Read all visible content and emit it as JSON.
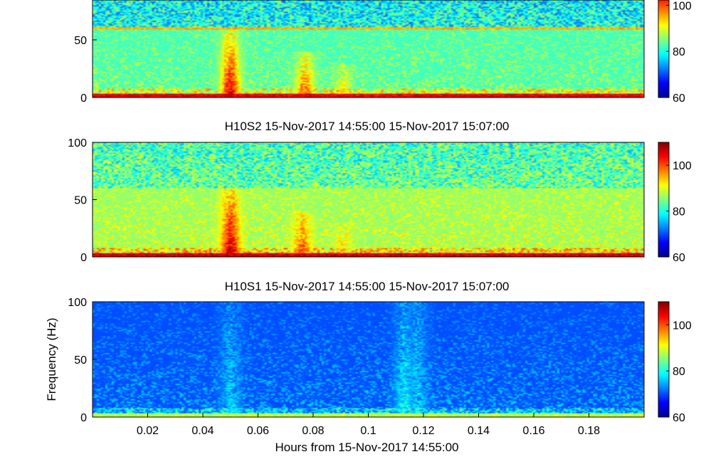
{
  "chart_data": [
    {
      "type": "heatmap",
      "title": "",
      "ylabel": "",
      "xlim": [
        0,
        0.2
      ],
      "ylim": [
        0,
        100
      ],
      "yticks": [
        "0",
        "50"
      ],
      "xticks": [],
      "clim": [
        60,
        110
      ],
      "colorbar_ticks": [
        "100",
        "80",
        "60"
      ],
      "background_level": 82,
      "floor_level": 105,
      "hum_line_hz": 60,
      "events": [
        {
          "t": 0.05,
          "fmax": 60,
          "level": 106
        },
        {
          "t": 0.077,
          "fmax": 40,
          "level": 100
        },
        {
          "t": 0.091,
          "fmax": 30,
          "level": 92
        }
      ]
    },
    {
      "type": "heatmap",
      "title": "H10S2 15-Nov-2017 14:55:00 15-Nov-2017 15:07:00",
      "ylabel": "",
      "xlim": [
        0,
        0.2
      ],
      "ylim": [
        0,
        100
      ],
      "yticks": [
        "100",
        "50",
        "0"
      ],
      "xticks": [],
      "clim": [
        60,
        110
      ],
      "colorbar_ticks": [
        "100",
        "80",
        "60"
      ],
      "background_level": 86,
      "floor_level": 106,
      "hum_line_hz": null,
      "events": [
        {
          "t": 0.05,
          "fmax": 60,
          "level": 107
        },
        {
          "t": 0.076,
          "fmax": 40,
          "level": 100
        },
        {
          "t": 0.091,
          "fmax": 30,
          "level": 93
        }
      ]
    },
    {
      "type": "heatmap",
      "title": "H10S1 15-Nov-2017 14:55:00 15-Nov-2017 15:07:00",
      "ylabel": "Frequency (Hz)",
      "xlabel": "Hours from 15-Nov-2017 14:55:00",
      "xlim": [
        0,
        0.2
      ],
      "ylim": [
        0,
        100
      ],
      "yticks": [
        "100",
        "50",
        "0"
      ],
      "xticks": [
        "0.02",
        "0.04",
        "0.06",
        "0.08",
        "0.1",
        "0.12",
        "0.14",
        "0.16",
        "0.18"
      ],
      "clim": [
        60,
        110
      ],
      "colorbar_ticks": [
        "100",
        "80",
        "60"
      ],
      "background_level": 70,
      "floor_level": 88,
      "hum_line_hz": null,
      "events": [
        {
          "t": 0.05,
          "fmax": 100,
          "level": 76
        },
        {
          "t": 0.113,
          "fmax": 100,
          "level": 78
        },
        {
          "t": 0.118,
          "fmax": 100,
          "level": 76
        }
      ]
    }
  ]
}
